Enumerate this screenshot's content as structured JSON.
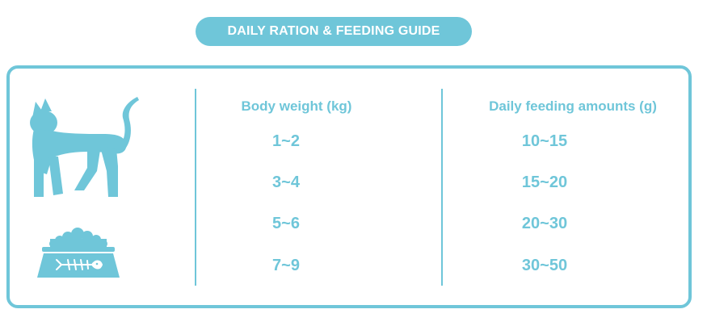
{
  "title": "DAILY RATION & FEEDING GUIDE",
  "table": {
    "headers": [
      "Body weight (kg)",
      "Daily feeding amounts (g)"
    ],
    "rows": [
      {
        "weight": "1~2",
        "amount": "10~15"
      },
      {
        "weight": "3~4",
        "amount": "15~20"
      },
      {
        "weight": "5~6",
        "amount": "20~30"
      },
      {
        "weight": "7~9",
        "amount": "30~50"
      }
    ]
  },
  "icons": [
    "cat-silhouette-icon",
    "food-bowl-icon"
  ],
  "colors": {
    "accent": "#6fc6d9",
    "background": "#ffffff"
  }
}
